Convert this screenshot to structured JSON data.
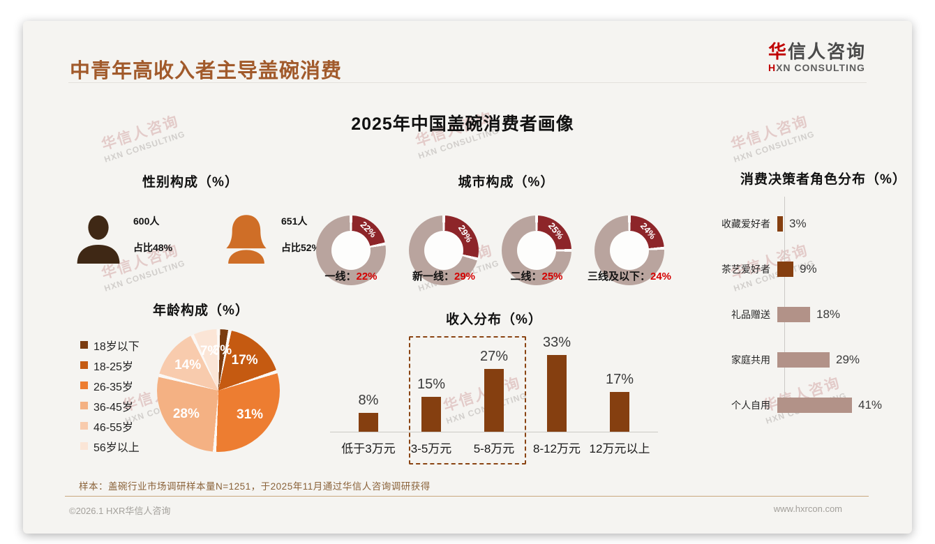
{
  "page": {
    "title": "中青年高收入者主导盖碗消费",
    "main_title": "2025年中国盖碗消费者画像",
    "logo": {
      "brand_cn_accent": "华",
      "brand_cn_rest": "信人咨询",
      "brand_en_accent": "H",
      "brand_en_rest": "XN CONSULTING"
    },
    "watermark": {
      "line1": "华信人咨询",
      "line2": "HXN CONSULTING"
    },
    "footer": {
      "note": "样本：盖碗行业市场调研样本量N=1251，于2025年11月通过华信人咨询调研获得",
      "copyright": "©2026.1 HXR华信人咨询",
      "website": "www.hxrcon.com"
    }
  },
  "chart_data": [
    {
      "id": "gender",
      "type": "icon-stat",
      "title": "性别构成（%）",
      "items": [
        {
          "icon": "male-icon",
          "count": "600人",
          "share": "占比48%",
          "color": "#3F2815"
        },
        {
          "icon": "female-icon",
          "count": "651人",
          "share": "占比52%",
          "color": "#CF6E27"
        }
      ]
    },
    {
      "id": "city",
      "type": "donut-set",
      "title": "城市构成（%）",
      "categories": [
        "一线",
        "新一线",
        "二线",
        "三线及以下"
      ],
      "values": [
        22,
        29,
        25,
        24
      ],
      "colors": {
        "highlight": "#8D2529",
        "rest": "#B9A49E",
        "value_text": "#D40000"
      },
      "legend_position": "below-each-donut"
    },
    {
      "id": "age",
      "type": "pie",
      "title": "年龄构成（%）",
      "categories": [
        "18岁以下",
        "18-25岁",
        "26-35岁",
        "36-45岁",
        "46-55岁",
        "56岁以上"
      ],
      "values": [
        3,
        17,
        31,
        28,
        14,
        7
      ],
      "colors": [
        "#7B3C10",
        "#C55A11",
        "#ED7D31",
        "#F4B183",
        "#F8CBAD",
        "#FBE5D6"
      ],
      "start_angle_deg": 0,
      "direction": "clockwise",
      "legend_position": "left"
    },
    {
      "id": "income",
      "type": "bar",
      "title": "收入分布（%）",
      "categories": [
        "低于3万元",
        "3-5万元",
        "5-8万元",
        "8-12万元",
        "12万元以上"
      ],
      "values": [
        8,
        15,
        27,
        33,
        17
      ],
      "bar_color": "#853F10",
      "highlight_box_categories": [
        "3-5万元",
        "5-8万元"
      ],
      "grid": false
    },
    {
      "id": "decision",
      "type": "hbar",
      "title": "消费决策者角色分布（%）",
      "categories": [
        "收藏爱好者",
        "茶艺爱好者",
        "礼品赠送",
        "家庭共用",
        "个人自用"
      ],
      "values": [
        3,
        9,
        18,
        29,
        41
      ],
      "bar_colors": [
        "#853F10",
        "#853F10",
        "#B29288",
        "#B29288",
        "#B29288"
      ],
      "grid": false
    }
  ]
}
